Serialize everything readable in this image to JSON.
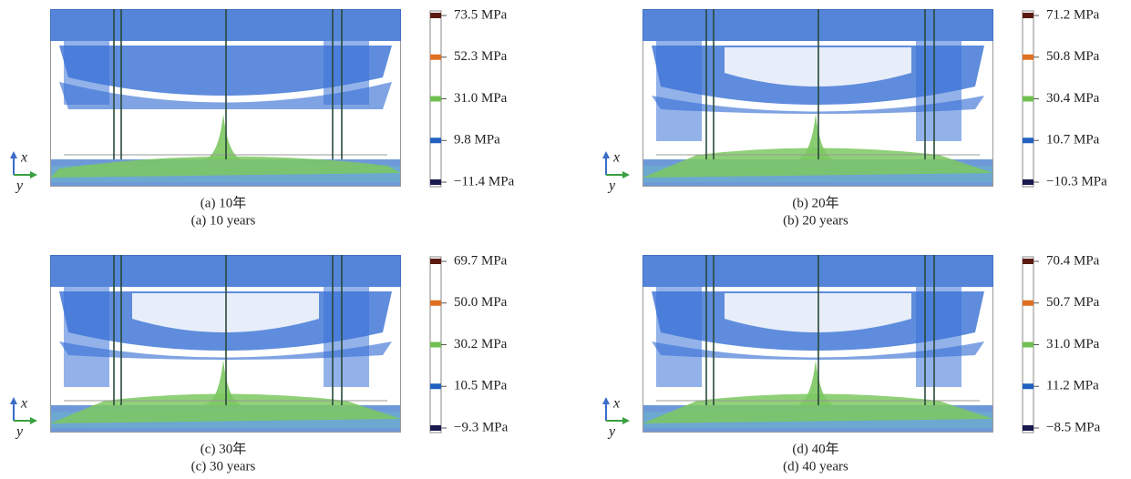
{
  "axis_labels": {
    "x": "x",
    "y": "y"
  },
  "panels": [
    {
      "caption_cn": "(a)  10年",
      "caption_en": "(a)  10 years",
      "colorbar": [
        "73.5 MPa",
        "52.3 MPa",
        "31.0 MPa",
        "9.8 MPa",
        "−11.4 MPa"
      ]
    },
    {
      "caption_cn": "(b)  20年",
      "caption_en": "(b)  20 years",
      "colorbar": [
        "71.2 MPa",
        "50.8 MPa",
        "30.4 MPa",
        "10.7 MPa",
        "−10.3 MPa"
      ]
    },
    {
      "caption_cn": "(c)  30年",
      "caption_en": "(c)  30 years",
      "colorbar": [
        "69.7 MPa",
        "50.0 MPa",
        "30.2 MPa",
        "10.5 MPa",
        "−9.3 MPa"
      ]
    },
    {
      "caption_cn": "(d)  40年",
      "caption_en": "(d)  40 years",
      "colorbar": [
        "70.4 MPa",
        "50.7 MPa",
        "31.0 MPa",
        "11.2 MPa",
        "−8.5 MPa"
      ]
    }
  ]
}
